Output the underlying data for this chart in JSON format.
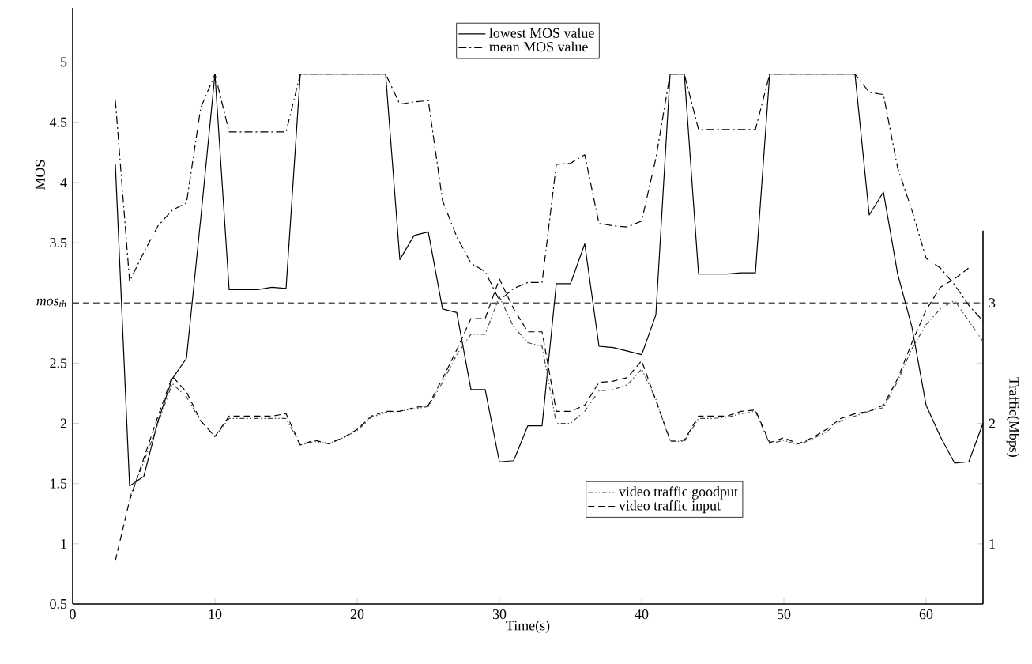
{
  "chart_data": {
    "type": "line",
    "xlabel": "Time(s)",
    "ylabel": "MOS",
    "y2label": "Traffic(Mbps)",
    "x": [
      3,
      4,
      5,
      6,
      7,
      8,
      9,
      10,
      11,
      12,
      13,
      14,
      15,
      16,
      17,
      18,
      19,
      20,
      21,
      22,
      23,
      24,
      25,
      26,
      27,
      28,
      29,
      30,
      31,
      32,
      33,
      34,
      35,
      36,
      37,
      38,
      39,
      40,
      41,
      42,
      43,
      44,
      45,
      46,
      47,
      48,
      49,
      50,
      51,
      52,
      53,
      54,
      55,
      56,
      57,
      58,
      59,
      60,
      61,
      62,
      63,
      64
    ],
    "xlim": [
      0,
      64
    ],
    "xticks": [
      0,
      10,
      20,
      30,
      40,
      50,
      60
    ],
    "ylim": [
      0.5,
      5.45
    ],
    "yticks": [
      0.5,
      1,
      1.5,
      2,
      2.5,
      {
        "value": 3,
        "label": null
      },
      3.5,
      4,
      4.5,
      5
    ],
    "y2lim": [
      0.5,
      3.6
    ],
    "y2ticks": [
      1,
      {
        "value": 1.5,
        "label": null
      },
      2,
      {
        "value": 2.5,
        "label": null
      },
      3
    ],
    "marker": "none",
    "legend": "top",
    "ref_lines": [
      {
        "axis": "y",
        "value": 3,
        "label": "mos$_{th}$",
        "line_style": "dashed",
        "color": "#000000"
      }
    ],
    "series": [
      {
        "name": "lowest MOS value",
        "color": "#000000",
        "line_style": "solid",
        "values": [
          4.15,
          1.48,
          1.56,
          2.02,
          2.37,
          2.54,
          3.7,
          4.9,
          3.11,
          3.11,
          3.11,
          3.13,
          3.12,
          4.9,
          4.9,
          4.9,
          4.9,
          4.9,
          4.9,
          4.9,
          3.36,
          3.56,
          3.59,
          2.95,
          2.92,
          2.28,
          2.28,
          1.68,
          1.69,
          1.98,
          1.98,
          3.16,
          3.16,
          3.49,
          2.64,
          2.63,
          2.6,
          2.57,
          2.9,
          4.9,
          4.9,
          3.24,
          3.24,
          3.24,
          3.25,
          3.25,
          4.9,
          4.9,
          4.9,
          4.9,
          4.9,
          4.9,
          4.9,
          3.73,
          3.92,
          3.24,
          2.8,
          2.15,
          1.89,
          1.67,
          1.68,
          2.0
        ]
      },
      {
        "name": "mean MOS value",
        "color": "#000000",
        "line_style": "dashdot",
        "values": [
          4.68,
          3.18,
          3.42,
          3.64,
          3.77,
          3.83,
          4.62,
          4.9,
          4.42,
          4.42,
          4.42,
          4.42,
          4.42,
          4.9,
          4.9,
          4.9,
          4.9,
          4.9,
          4.9,
          4.9,
          4.65,
          4.67,
          4.68,
          3.85,
          3.55,
          3.33,
          3.26,
          3.02,
          3.12,
          3.17,
          3.17,
          4.15,
          4.16,
          4.23,
          3.66,
          3.64,
          3.63,
          3.68,
          4.2,
          4.9,
          4.9,
          4.44,
          4.44,
          4.44,
          4.44,
          4.44,
          4.9,
          4.9,
          4.9,
          4.9,
          4.9,
          4.9,
          4.9,
          4.75,
          4.73,
          4.12,
          3.77,
          3.37,
          3.29,
          3.15,
          2.98,
          2.85
        ]
      },
      {
        "name": "video traffic goodput",
        "color": "#444444",
        "line_style": "dashdotdot",
        "axis": "y2",
        "x": [
          4,
          5,
          6,
          7,
          8,
          9,
          10,
          11,
          12,
          13,
          14,
          15,
          16,
          17,
          18,
          19,
          20,
          21,
          22,
          23,
          24,
          25,
          26,
          27,
          28,
          29,
          30,
          31,
          32,
          33,
          34,
          35,
          36,
          37,
          38,
          39,
          40,
          41,
          42,
          43,
          44,
          45,
          46,
          47,
          48,
          49,
          50,
          51,
          52,
          53,
          54,
          55,
          56,
          57,
          58,
          59,
          60,
          61,
          62,
          63,
          64
        ],
        "values": [
          1.38,
          1.68,
          2.0,
          2.33,
          2.22,
          2.02,
          1.89,
          2.04,
          2.04,
          2.04,
          2.04,
          2.04,
          1.82,
          1.85,
          1.83,
          1.88,
          1.94,
          2.05,
          2.09,
          2.1,
          2.12,
          2.14,
          2.34,
          2.57,
          2.74,
          2.74,
          3.05,
          2.8,
          2.67,
          2.64,
          2.0,
          2.0,
          2.1,
          2.27,
          2.28,
          2.32,
          2.45,
          2.2,
          1.85,
          1.85,
          2.04,
          2.04,
          2.05,
          2.08,
          2.1,
          1.83,
          1.86,
          1.82,
          1.87,
          1.93,
          2.02,
          2.06,
          2.1,
          2.13,
          2.35,
          2.62,
          2.82,
          2.95,
          3.02,
          2.85,
          2.68
        ]
      },
      {
        "name": "video traffic input",
        "color": "#000000",
        "line_style": "dashed",
        "axis": "y2",
        "x": [
          3,
          4,
          5,
          6,
          7,
          8,
          9,
          10,
          11,
          12,
          13,
          14,
          15,
          16,
          17,
          18,
          19,
          20,
          21,
          22,
          23,
          24,
          25,
          26,
          27,
          28,
          29,
          30,
          31,
          32,
          33,
          34,
          35,
          36,
          37,
          38,
          39,
          40,
          41,
          42,
          43,
          44,
          45,
          46,
          47,
          48,
          49,
          50,
          51,
          52,
          53,
          54,
          55,
          56,
          57,
          58,
          59,
          60,
          61,
          62,
          63
        ],
        "values": [
          0.86,
          1.36,
          1.71,
          2.06,
          2.39,
          2.26,
          2.02,
          1.89,
          2.06,
          2.06,
          2.06,
          2.06,
          2.08,
          1.82,
          1.86,
          1.83,
          1.88,
          1.95,
          2.06,
          2.1,
          2.1,
          2.13,
          2.15,
          2.37,
          2.61,
          2.87,
          2.87,
          3.2,
          2.95,
          2.76,
          2.76,
          2.1,
          2.1,
          2.15,
          2.34,
          2.35,
          2.38,
          2.52,
          2.19,
          1.86,
          1.86,
          2.06,
          2.06,
          2.06,
          2.1,
          2.11,
          1.84,
          1.88,
          1.83,
          1.88,
          1.95,
          2.04,
          2.08,
          2.1,
          2.15,
          2.37,
          2.67,
          2.94,
          3.13,
          3.2,
          3.29
        ]
      }
    ]
  }
}
